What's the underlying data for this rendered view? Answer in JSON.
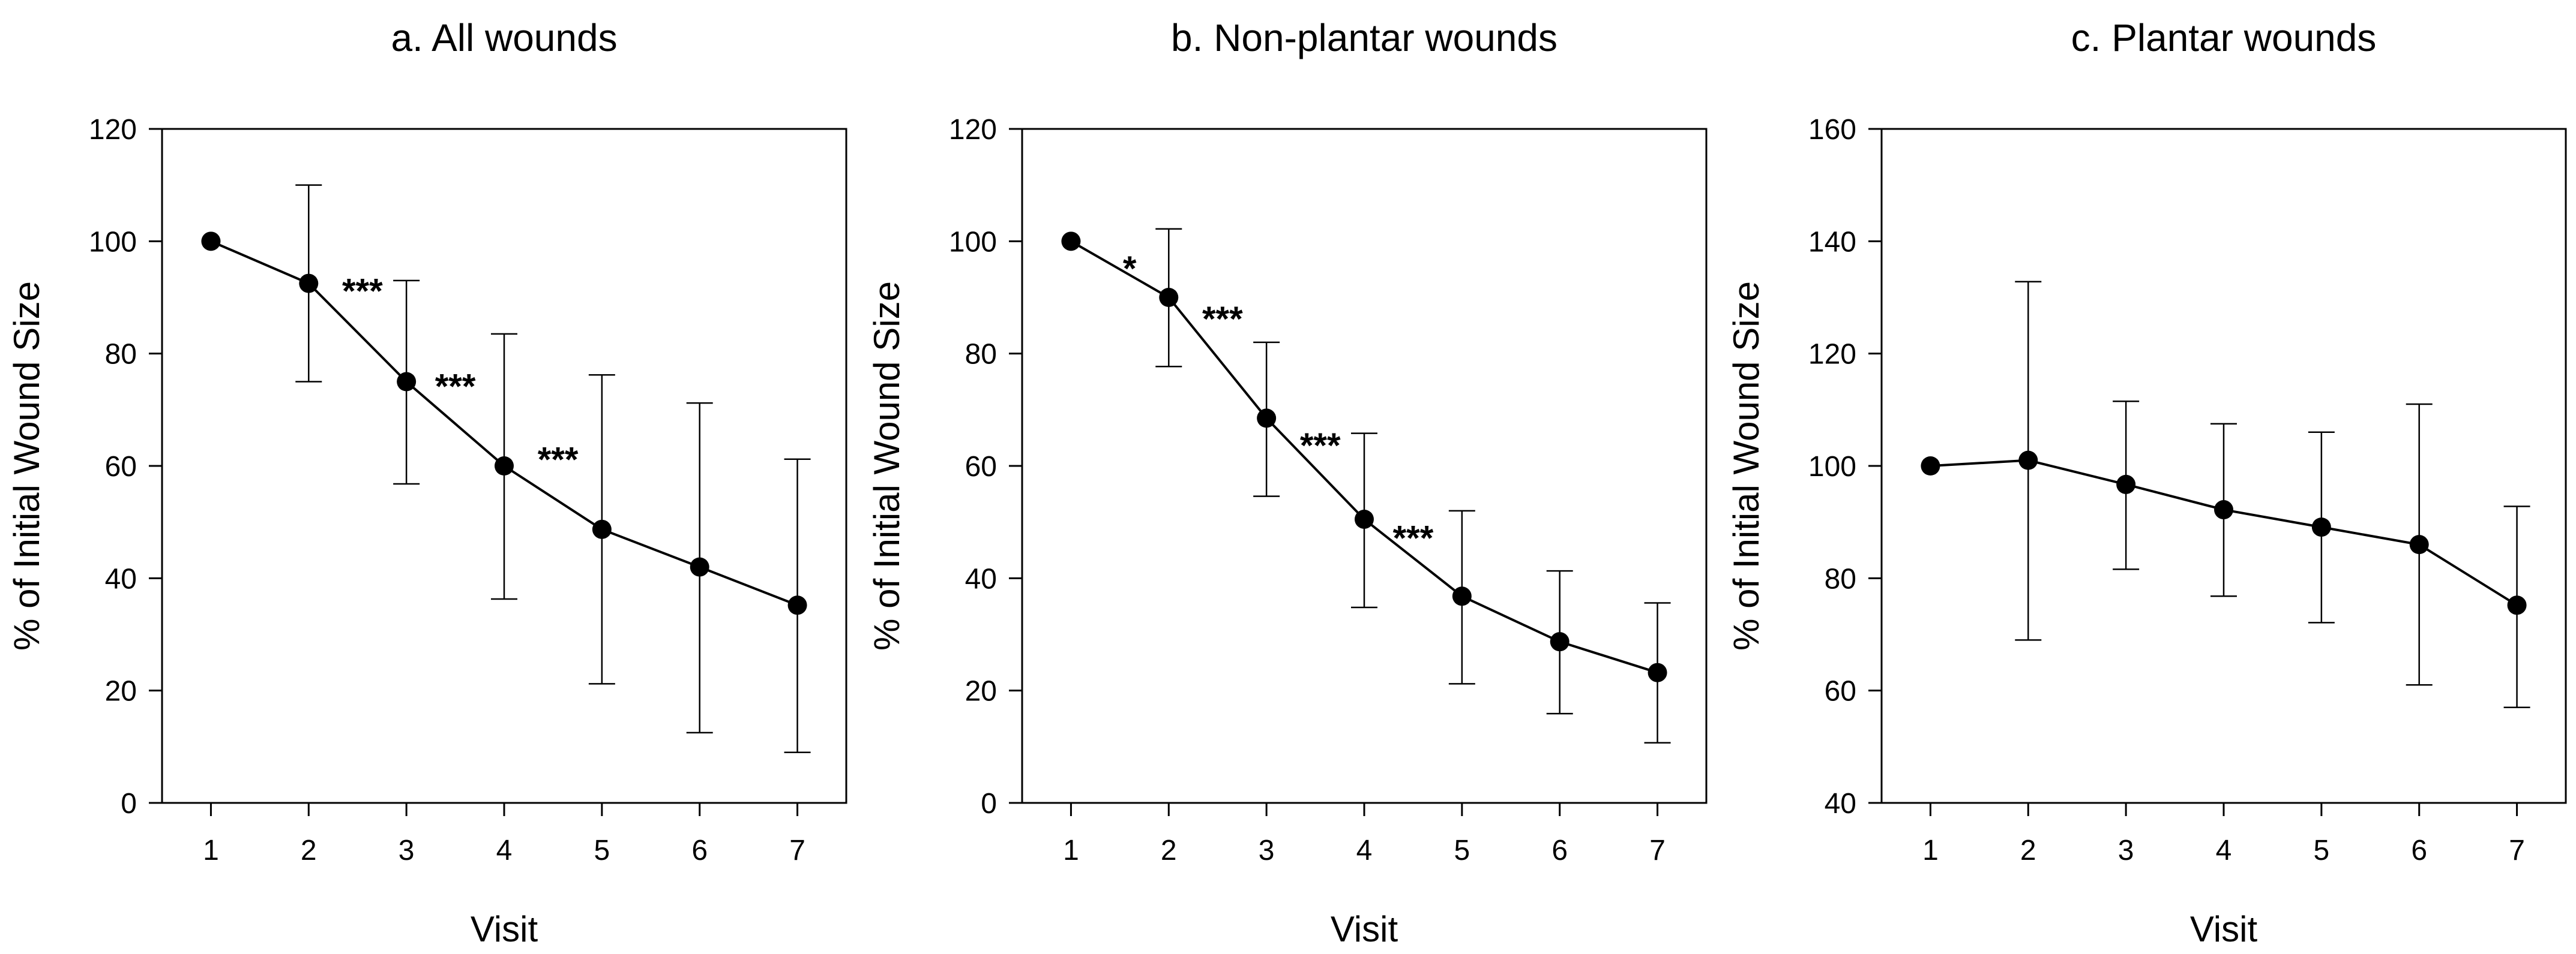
{
  "chart_data": [
    {
      "type": "line",
      "title": "a. All wounds",
      "xlabel": "Visit",
      "ylabel": "% of Initial Wound Size",
      "x": [
        1,
        2,
        3,
        4,
        5,
        6,
        7
      ],
      "xlim": [
        0.5,
        7.5
      ],
      "ylim": [
        0,
        120
      ],
      "yticks": [
        0,
        20,
        40,
        60,
        80,
        100,
        120
      ],
      "series": [
        {
          "values": [
            100,
            92.5,
            75,
            60,
            48.7,
            42,
            35.2
          ],
          "error_upper": [
            100,
            110,
            93,
            83.5,
            76.2,
            71.2,
            61.2
          ],
          "error_lower": [
            100,
            75,
            56.8,
            36.3,
            21.2,
            12.5,
            9
          ]
        }
      ],
      "annotations": [
        {
          "text": "***",
          "x": 2.55,
          "y": 92
        },
        {
          "text": "***",
          "x": 3.5,
          "y": 75
        },
        {
          "text": "***",
          "x": 4.55,
          "y": 62
        }
      ]
    },
    {
      "type": "line",
      "title": "b. Non-plantar wounds",
      "xlabel": "Visit",
      "ylabel": "% of Initial Wound Size",
      "x": [
        1,
        2,
        3,
        4,
        5,
        6,
        7
      ],
      "xlim": [
        0.5,
        7.5
      ],
      "ylim": [
        0,
        120
      ],
      "yticks": [
        0,
        20,
        40,
        60,
        80,
        100,
        120
      ],
      "series": [
        {
          "values": [
            100,
            90,
            68.5,
            50.5,
            36.8,
            28.7,
            23.2
          ],
          "error_upper": [
            100,
            102.2,
            82,
            65.8,
            52,
            41.3,
            35.6
          ],
          "error_lower": [
            100,
            77.7,
            54.6,
            34.8,
            21.2,
            15.9,
            10.7
          ]
        }
      ],
      "annotations": [
        {
          "text": "*",
          "x": 1.6,
          "y": 96
        },
        {
          "text": "***",
          "x": 2.55,
          "y": 87
        },
        {
          "text": "***",
          "x": 3.55,
          "y": 64.5
        },
        {
          "text": "***",
          "x": 4.5,
          "y": 48
        }
      ]
    },
    {
      "type": "line",
      "title": "c. Plantar wounds",
      "xlabel": "Visit",
      "ylabel": "% of Initial Wound Size",
      "x": [
        1,
        2,
        3,
        4,
        5,
        6,
        7
      ],
      "xlim": [
        0.5,
        7.5
      ],
      "ylim": [
        40,
        160
      ],
      "yticks": [
        40,
        60,
        80,
        100,
        120,
        140,
        160
      ],
      "series": [
        {
          "values": [
            100,
            101,
            96.7,
            92.2,
            89.1,
            86,
            75.2
          ],
          "error_upper": [
            100,
            132.8,
            111.5,
            107.5,
            106,
            111,
            92.8
          ],
          "error_lower": [
            100,
            69,
            81.6,
            76.8,
            72.1,
            61,
            57
          ]
        }
      ],
      "annotations": []
    }
  ]
}
